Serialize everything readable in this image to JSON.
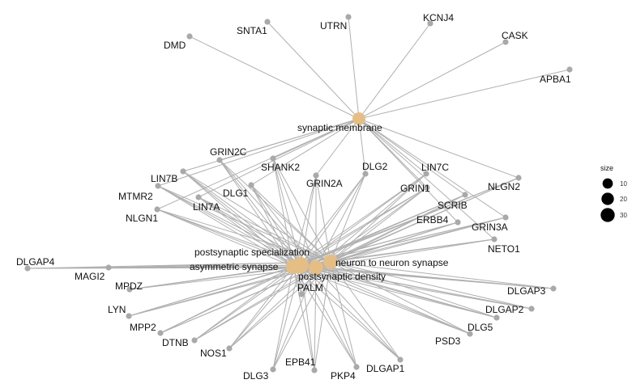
{
  "colors": {
    "background": "#ffffff",
    "edge": "#b0b0b0",
    "gene_node": "#a9a9a9",
    "term_node": "#e5be86",
    "label": "#111111",
    "legend_dot": "#000000"
  },
  "network": {
    "terms": [
      {
        "id": "t_mem",
        "label": "synaptic membrane"
      },
      {
        "id": "t_pss",
        "label": "postsynaptic specialization"
      },
      {
        "id": "t_asy",
        "label": "asymmetric synapse"
      },
      {
        "id": "t_n2n",
        "label": "neuron to neuron synapse"
      },
      {
        "id": "t_psd",
        "label": "postsynaptic density"
      }
    ],
    "genes": [
      {
        "id": "DMD",
        "label": "DMD"
      },
      {
        "id": "SNTA1",
        "label": "SNTA1"
      },
      {
        "id": "UTRN",
        "label": "UTRN"
      },
      {
        "id": "KCNJ4",
        "label": "KCNJ4"
      },
      {
        "id": "CASK",
        "label": "CASK"
      },
      {
        "id": "APBA1",
        "label": "APBA1"
      },
      {
        "id": "GRIN2C",
        "label": "GRIN2C"
      },
      {
        "id": "LIN7B",
        "label": "LIN7B"
      },
      {
        "id": "SHANK2",
        "label": "SHANK2"
      },
      {
        "id": "DLG2",
        "label": "DLG2"
      },
      {
        "id": "LIN7C",
        "label": "LIN7C"
      },
      {
        "id": "NLGN2",
        "label": "NLGN2"
      },
      {
        "id": "MTMR2",
        "label": "MTMR2"
      },
      {
        "id": "DLG1",
        "label": "DLG1"
      },
      {
        "id": "GRIN2A",
        "label": "GRIN2A"
      },
      {
        "id": "GRIN1",
        "label": "GRIN1"
      },
      {
        "id": "SCRIB",
        "label": "SCRIB"
      },
      {
        "id": "NLGN1",
        "label": "NLGN1"
      },
      {
        "id": "LIN7A",
        "label": "LIN7A"
      },
      {
        "id": "ERBB4",
        "label": "ERBB4"
      },
      {
        "id": "GRIN3A",
        "label": "GRIN3A"
      },
      {
        "id": "NETO1",
        "label": "NETO1"
      },
      {
        "id": "DLGAP4",
        "label": "DLGAP4"
      },
      {
        "id": "MAGI2",
        "label": "MAGI2"
      },
      {
        "id": "MPDZ",
        "label": "MPDZ"
      },
      {
        "id": "PALM",
        "label": "PALM"
      },
      {
        "id": "DLGAP3",
        "label": "DLGAP3"
      },
      {
        "id": "LYN",
        "label": "LYN"
      },
      {
        "id": "DLGAP2",
        "label": "DLGAP2"
      },
      {
        "id": "MPP2",
        "label": "MPP2"
      },
      {
        "id": "DLG5",
        "label": "DLG5"
      },
      {
        "id": "DTNB",
        "label": "DTNB"
      },
      {
        "id": "NOS1",
        "label": "NOS1"
      },
      {
        "id": "PSD3",
        "label": "PSD3"
      },
      {
        "id": "EPB41",
        "label": "EPB41"
      },
      {
        "id": "DLGAP1",
        "label": "DLGAP1"
      },
      {
        "id": "DLG3",
        "label": "DLG3"
      },
      {
        "id": "PKP4",
        "label": "PKP4"
      }
    ]
  },
  "legend": {
    "title": "size",
    "items": [
      {
        "label": "10",
        "value": 10
      },
      {
        "label": "20",
        "value": 20
      },
      {
        "label": "30",
        "value": 30
      }
    ]
  }
}
